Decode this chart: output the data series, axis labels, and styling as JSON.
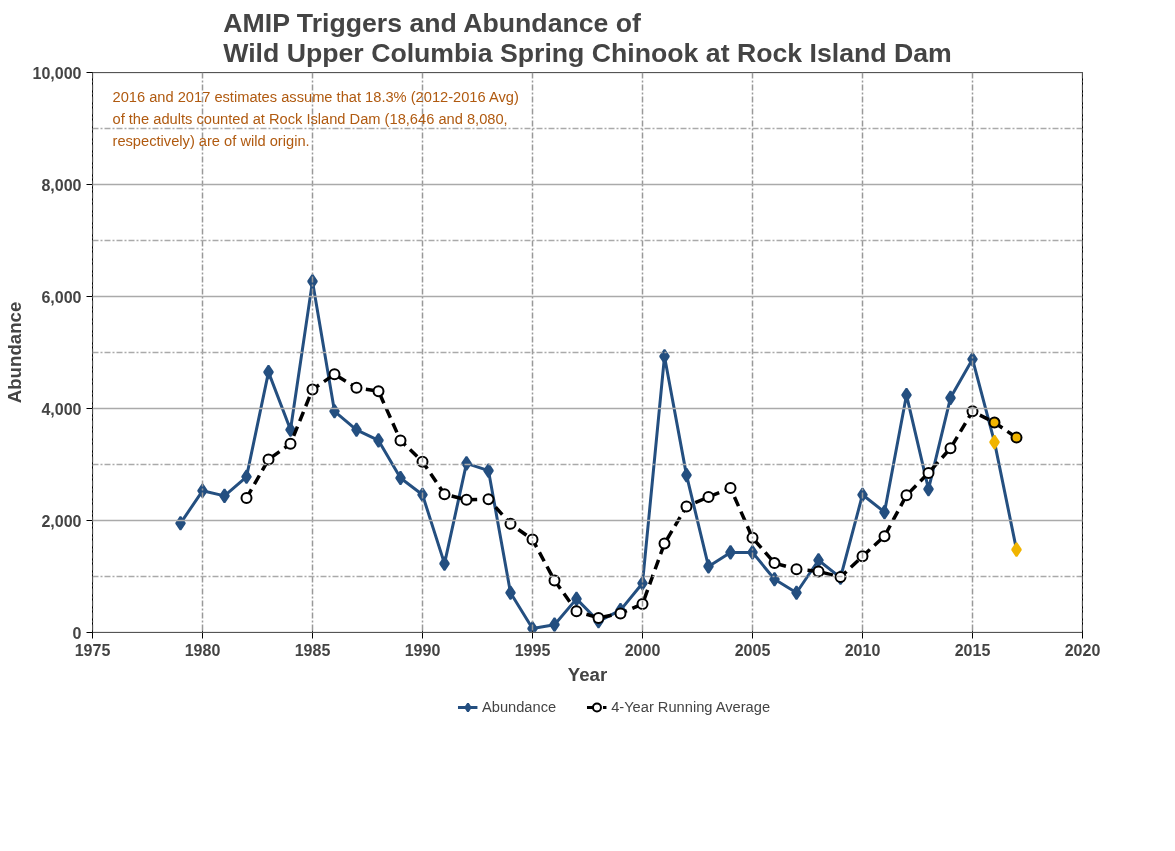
{
  "chart_data": {
    "type": "line",
    "title": "AMIP Triggers and Abundance of\nWild Upper Columbia Spring Chinook at Rock Island Dam",
    "xlabel": "Year",
    "ylabel": "Abundance",
    "xlim": [
      1975,
      2020
    ],
    "xticks": [
      1975,
      1980,
      1985,
      1990,
      1995,
      2000,
      2005,
      2010,
      2015,
      2020
    ],
    "ylim": [
      0,
      10000
    ],
    "yticks": [
      {
        "value": 0,
        "label": "0"
      },
      {
        "value": 1000,
        "label": null
      },
      {
        "value": 2000,
        "label": "2,000"
      },
      {
        "value": 3000,
        "label": null
      },
      {
        "value": 4000,
        "label": "4,000"
      },
      {
        "value": 5000,
        "label": null
      },
      {
        "value": 6000,
        "label": "6,000"
      },
      {
        "value": 7000,
        "label": null
      },
      {
        "value": 8000,
        "label": "8,000"
      },
      {
        "value": 9000,
        "label": null
      },
      {
        "value": 10000,
        "label": "10,000"
      }
    ],
    "grid": true,
    "legend": "bottom",
    "annotations": [
      "2016 and 2017 estimates assume that 18.3% (2012-2016  Avg) of the adults counted at Rock Island Dam (18,646 and 8,080, respectively) are of wild origin."
    ],
    "series": [
      {
        "name": "Abundance",
        "color": "#244f80",
        "marker": "diamond",
        "line_style": "solid",
        "x": [
          1979,
          1980,
          1981,
          1982,
          1983,
          1984,
          1985,
          1986,
          1987,
          1988,
          1989,
          1990,
          1991,
          1992,
          1993,
          1994,
          1995,
          1996,
          1997,
          1998,
          1999,
          2000,
          2001,
          2002,
          2003,
          2004,
          2005,
          2006,
          2007,
          2008,
          2009,
          2010,
          2011,
          2012,
          2013,
          2014,
          2015,
          2016,
          2017
        ],
        "values": [
          1950,
          2530,
          2440,
          2780,
          4650,
          3620,
          6270,
          3950,
          3620,
          3430,
          2760,
          2460,
          1230,
          3020,
          2890,
          710,
          70,
          140,
          600,
          200,
          400,
          880,
          4930,
          2810,
          1180,
          1430,
          1430,
          950,
          710,
          1290,
          980,
          2460,
          2150,
          4240,
          2560,
          4190,
          4880,
          3400,
          1480
        ],
        "colors": [
          "#244f80",
          "#244f80",
          "#244f80",
          "#244f80",
          "#244f80",
          "#244f80",
          "#244f80",
          "#244f80",
          "#244f80",
          "#244f80",
          "#244f80",
          "#244f80",
          "#244f80",
          "#244f80",
          "#244f80",
          "#244f80",
          "#244f80",
          "#244f80",
          "#244f80",
          "#244f80",
          "#244f80",
          "#244f80",
          "#244f80",
          "#244f80",
          "#244f80",
          "#244f80",
          "#244f80",
          "#244f80",
          "#244f80",
          "#244f80",
          "#244f80",
          "#244f80",
          "#244f80",
          "#244f80",
          "#244f80",
          "#244f80",
          "#244f80",
          "#f0b400",
          "#f0b400"
        ]
      },
      {
        "name": "4-Year Running Average",
        "color": "#000000",
        "marker": "circle",
        "line_style": "dashed",
        "x": [
          1982,
          1983,
          1984,
          1985,
          1986,
          1987,
          1988,
          1989,
          1990,
          1991,
          1992,
          1993,
          1994,
          1995,
          1996,
          1997,
          1998,
          1999,
          2000,
          2001,
          2002,
          2003,
          2004,
          2005,
          2006,
          2007,
          2008,
          2009,
          2010,
          2011,
          2012,
          2013,
          2014,
          2015,
          2016,
          2017
        ],
        "values": [
          2400,
          3090,
          3370,
          4340,
          4610,
          4370,
          4310,
          3430,
          3050,
          2470,
          2370,
          2380,
          1940,
          1660,
          930,
          380,
          260,
          340,
          510,
          1590,
          2250,
          2420,
          2580,
          1690,
          1240,
          1130,
          1090,
          990,
          1360,
          1720,
          2450,
          2850,
          3290,
          3950,
          3750,
          3480
        ],
        "colors": [
          "#ffffff",
          "#ffffff",
          "#ffffff",
          "#ffffff",
          "#ffffff",
          "#ffffff",
          "#ffffff",
          "#ffffff",
          "#ffffff",
          "#ffffff",
          "#ffffff",
          "#ffffff",
          "#ffffff",
          "#ffffff",
          "#ffffff",
          "#ffffff",
          "#ffffff",
          "#ffffff",
          "#ffffff",
          "#ffffff",
          "#ffffff",
          "#ffffff",
          "#ffffff",
          "#ffffff",
          "#ffffff",
          "#ffffff",
          "#ffffff",
          "#ffffff",
          "#ffffff",
          "#ffffff",
          "#ffffff",
          "#ffffff",
          "#ffffff",
          "#ffffff",
          "#f0b400",
          "#f0b400"
        ]
      }
    ]
  }
}
